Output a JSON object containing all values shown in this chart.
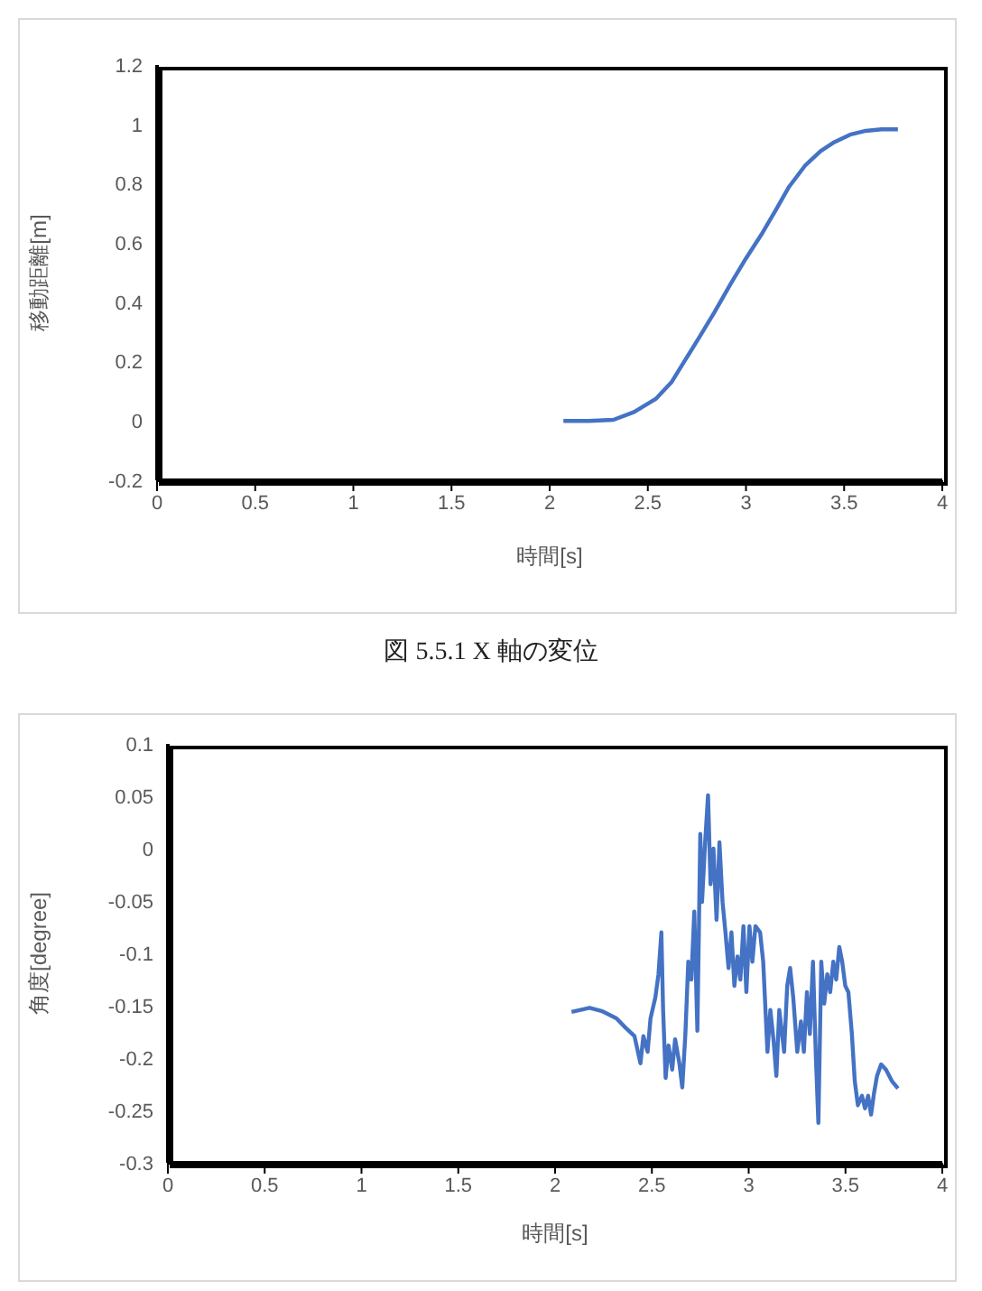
{
  "chart_data": [
    {
      "type": "line",
      "xlabel": "時間[s]",
      "ylabel": "移動距離[m]",
      "annotations": [
        "図 5.5.1 X 軸の変位"
      ],
      "x": [
        2.07,
        2.2,
        2.325,
        2.43,
        2.54,
        2.62,
        2.69,
        2.76,
        2.84,
        2.92,
        3.0,
        3.08,
        3.15,
        3.22,
        3.3,
        3.38,
        3.45,
        3.53,
        3.61,
        3.69,
        3.774
      ],
      "values": [
        0,
        0,
        0.004,
        0.03,
        0.074,
        0.13,
        0.205,
        0.28,
        0.367,
        0.46,
        0.548,
        0.63,
        0.709,
        0.79,
        0.86,
        0.91,
        0.94,
        0.965,
        0.978,
        0.983,
        0.983
      ],
      "color": "#4472c4",
      "xlim": [
        0,
        4
      ],
      "xticks": [
        0,
        0.5,
        1,
        1.5,
        2,
        2.5,
        3,
        3.5,
        4
      ],
      "ylim": [
        -0.2,
        1.2
      ],
      "yticks": [
        -0.2,
        0,
        0.2,
        0.4,
        0.6,
        0.8,
        1,
        1.2
      ]
    },
    {
      "type": "line",
      "xlabel": "時間[s]",
      "ylabel": "角度[degree]",
      "x": [
        2.085,
        2.178,
        2.24,
        2.317,
        2.364,
        2.41,
        2.441,
        2.456,
        2.478,
        2.493,
        2.518,
        2.534,
        2.549,
        2.558,
        2.571,
        2.586,
        2.605,
        2.62,
        2.642,
        2.657,
        2.673,
        2.688,
        2.704,
        2.719,
        2.735,
        2.75,
        2.759,
        2.775,
        2.79,
        2.803,
        2.818,
        2.834,
        2.849,
        2.865,
        2.88,
        2.896,
        2.911,
        2.926,
        2.942,
        2.957,
        2.973,
        2.988,
        3.004,
        3.019,
        3.035,
        3.059,
        3.075,
        3.097,
        3.112,
        3.128,
        3.143,
        3.158,
        3.183,
        3.199,
        3.214,
        3.23,
        3.251,
        3.27,
        3.285,
        3.301,
        3.316,
        3.332,
        3.347,
        3.36,
        3.375,
        3.39,
        3.406,
        3.421,
        3.437,
        3.452,
        3.468,
        3.483,
        3.499,
        3.515,
        3.533,
        3.548,
        3.564,
        3.585,
        3.601,
        3.617,
        3.632,
        3.647,
        3.663,
        3.684,
        3.709,
        3.74,
        3.771
      ],
      "values": [
        -0.156,
        -0.152,
        -0.155,
        -0.162,
        -0.171,
        -0.179,
        -0.205,
        -0.179,
        -0.194,
        -0.162,
        -0.142,
        -0.12,
        -0.08,
        -0.154,
        -0.219,
        -0.188,
        -0.211,
        -0.182,
        -0.205,
        -0.228,
        -0.177,
        -0.108,
        -0.125,
        -0.06,
        -0.174,
        0.014,
        -0.051,
        0.006,
        0.051,
        -0.034,
        0,
        -0.068,
        0.006,
        -0.051,
        -0.08,
        -0.114,
        -0.08,
        -0.131,
        -0.103,
        -0.125,
        -0.074,
        -0.137,
        -0.074,
        -0.108,
        -0.074,
        -0.08,
        -0.108,
        -0.194,
        -0.154,
        -0.182,
        -0.217,
        -0.154,
        -0.194,
        -0.131,
        -0.114,
        -0.142,
        -0.194,
        -0.165,
        -0.194,
        -0.137,
        -0.177,
        -0.108,
        -0.199,
        -0.262,
        -0.108,
        -0.148,
        -0.12,
        -0.137,
        -0.108,
        -0.125,
        -0.094,
        -0.108,
        -0.131,
        -0.137,
        -0.177,
        -0.222,
        -0.245,
        -0.236,
        -0.248,
        -0.236,
        -0.254,
        -0.234,
        -0.217,
        -0.206,
        -0.211,
        -0.222,
        -0.229
      ],
      "color": "#4472c4",
      "xlim": [
        0,
        4
      ],
      "xticks": [
        0,
        0.5,
        1,
        1.5,
        2,
        2.5,
        3,
        3.5,
        4
      ],
      "ylim": [
        -0.3,
        0.1
      ],
      "yticks": [
        -0.3,
        -0.25,
        -0.2,
        -0.15,
        -0.1,
        -0.05,
        0,
        0.05,
        0.1
      ]
    }
  ]
}
